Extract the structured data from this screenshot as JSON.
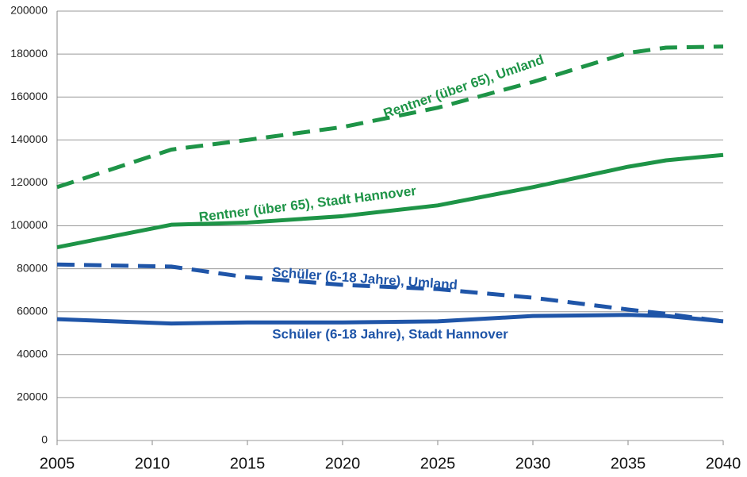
{
  "chart_data": {
    "type": "line",
    "x": [
      2005,
      2011,
      2015,
      2020,
      2025,
      2030,
      2035,
      2037,
      2040
    ],
    "xlim": [
      2005,
      2040
    ],
    "xticks": [
      2005,
      2010,
      2015,
      2020,
      2025,
      2030,
      2035,
      2040
    ],
    "ylim": [
      0,
      200000
    ],
    "yticks": [
      0,
      20000,
      40000,
      60000,
      80000,
      100000,
      120000,
      140000,
      160000,
      180000,
      200000
    ],
    "grid": true,
    "series": [
      {
        "name": "Rentner (über 65), Umland",
        "color": "#1e9447",
        "style": "dashed",
        "values": [
          118000,
          135500,
          140000,
          146000,
          155000,
          167000,
          180500,
          183000,
          183500
        ]
      },
      {
        "name": "Rentner (über 65), Stadt Hannover",
        "color": "#1e9447",
        "style": "solid",
        "values": [
          90000,
          100500,
          101500,
          104500,
          109500,
          118000,
          127500,
          130500,
          133000
        ]
      },
      {
        "name": "Schüler (6-18 Jahre), Umland",
        "color": "#1f55a8",
        "style": "dashed",
        "values": [
          82000,
          81000,
          76000,
          72500,
          70500,
          66500,
          61000,
          59000,
          55500
        ]
      },
      {
        "name": "Schüler (6-18 Jahre), Stadt Hannover",
        "color": "#1f55a8",
        "style": "solid",
        "values": [
          56500,
          54500,
          55000,
          55000,
          55500,
          58000,
          58500,
          58000,
          55500
        ]
      }
    ]
  }
}
